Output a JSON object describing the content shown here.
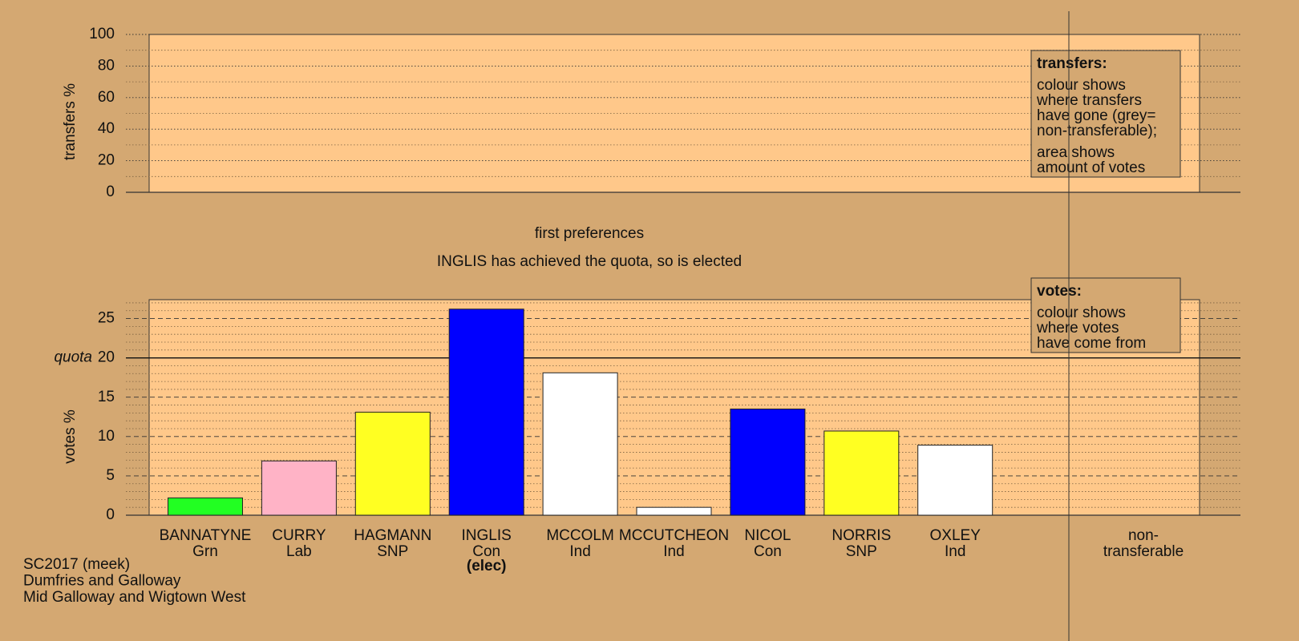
{
  "chart_data": [
    {
      "type": "panel",
      "ylabel": "transfers %",
      "ylim": [
        0,
        100
      ],
      "yticks": [
        0,
        20,
        40,
        60,
        80,
        100
      ],
      "minor_yticks": [
        10,
        30,
        50,
        70,
        90
      ],
      "note_box": {
        "heading": "transfers:",
        "paragraphs": [
          [
            "colour shows",
            "where transfers",
            "have gone (grey=",
            "non-transferable);"
          ],
          [
            "area shows",
            "amount of votes"
          ]
        ]
      }
    },
    {
      "type": "bar",
      "title": "first preferences",
      "subtitle": "INGLIS has achieved the quota, so is elected",
      "ylabel": "votes %",
      "categories": [
        "BANNATYNE",
        "CURRY",
        "HAGMANN",
        "INGLIS",
        "MCCOLM",
        "MCCUTCHEON",
        "NICOL",
        "NORRIS",
        "OXLEY"
      ],
      "parties": [
        "Grn",
        "Lab",
        "SNP",
        "Con",
        "Ind",
        "Ind",
        "Con",
        "SNP",
        "Ind"
      ],
      "category_notes": [
        null,
        null,
        null,
        "(elec)",
        null,
        null,
        null,
        null,
        null
      ],
      "values": [
        2.2,
        6.9,
        13.1,
        26.2,
        18.1,
        1.0,
        13.5,
        10.7,
        8.9
      ],
      "colors": [
        "#22ff22",
        "#ffb3c6",
        "#ffff22",
        "#0000ff",
        "#ffffff",
        "#ffffff",
        "#0000ff",
        "#ffff22",
        "#ffffff"
      ],
      "extra_category": [
        "non-",
        "transferable"
      ],
      "ylim": [
        0,
        27.4
      ],
      "yticks": [
        0,
        5,
        10,
        15,
        20,
        25
      ],
      "minor_yticks": [
        1,
        2,
        3,
        4,
        6,
        7,
        8,
        9,
        11,
        12,
        13,
        14,
        16,
        17,
        18,
        19,
        21,
        22,
        23,
        24,
        26,
        27
      ],
      "quota": {
        "value": 20,
        "label": "quota"
      },
      "note_box": {
        "heading": "votes:",
        "paragraphs": [
          [
            "colour shows",
            "where votes",
            "have come from"
          ]
        ]
      }
    }
  ],
  "footer": [
    "SC2017 (meek)",
    "Dumfries and Galloway",
    "Mid Galloway and Wigtown West"
  ]
}
